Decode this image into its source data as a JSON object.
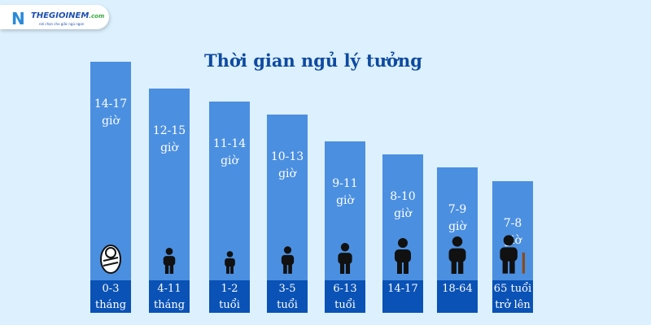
{
  "logo": {
    "brand": "THEGIOINEM",
    "suffix": ".com",
    "tagline": "nơi chọn cho giấc ngủ ngon"
  },
  "chart_data": {
    "type": "bar",
    "title": "Thời gian ngủ lý tưởng",
    "categories": [
      "0-3 tháng",
      "4-11 tháng",
      "1-2 tuổi",
      "3-5 tuổi",
      "6-13 tuổi",
      "14-17",
      "18-64",
      "65 tuổi trở lên"
    ],
    "category_lines": [
      [
        "0-3",
        "tháng"
      ],
      [
        "4-11",
        "tháng"
      ],
      [
        "1-2",
        "tuổi"
      ],
      [
        "3-5",
        "tuổi"
      ],
      [
        "6-13",
        "tuổi"
      ],
      [
        "14-17",
        ""
      ],
      [
        "18-64",
        ""
      ],
      [
        "65 tuổi",
        "trở lên"
      ]
    ],
    "ranges": [
      [
        14,
        17
      ],
      [
        12,
        15
      ],
      [
        11,
        14
      ],
      [
        10,
        13
      ],
      [
        9,
        11
      ],
      [
        8,
        10
      ],
      [
        7,
        9
      ],
      [
        7,
        8
      ]
    ],
    "value_labels": [
      [
        "14-17",
        "giờ"
      ],
      [
        "12-15",
        "giờ"
      ],
      [
        "11-14",
        "giờ"
      ],
      [
        "10-13",
        "giờ"
      ],
      [
        "9-11",
        "giờ"
      ],
      [
        "8-10",
        "giờ"
      ],
      [
        "7-9",
        "giờ"
      ],
      [
        "7-8",
        "giờ"
      ]
    ],
    "icons": [
      "baby-swaddled-icon",
      "infant-icon",
      "toddler-icon",
      "child-icon",
      "kid-icon",
      "teen-icon",
      "adult-icon",
      "elder-with-cane-icon"
    ],
    "colors": {
      "bar": "#4b8fe0",
      "label_band": "#0a52b5",
      "title": "#0e4aa0",
      "background": "#dcf0fd"
    }
  }
}
